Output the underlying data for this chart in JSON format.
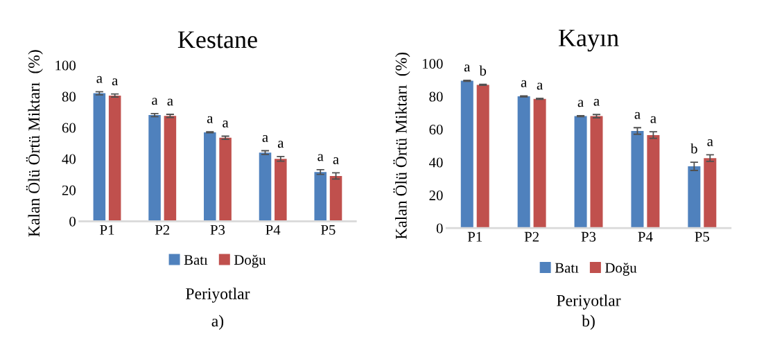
{
  "chart_data": [
    {
      "type": "bar",
      "title": "Kestane",
      "xlabel": "Periyotlar",
      "ylabel": "Kalan Ölü Örtü Miktarı  (%)",
      "categories": [
        "P1",
        "P2",
        "P3",
        "P4",
        "P5"
      ],
      "ylim": [
        0,
        100
      ],
      "yticks": [
        0,
        20,
        40,
        60,
        80,
        100
      ],
      "grid": false,
      "legend": "bottom",
      "annotations": [
        "a)"
      ],
      "series": [
        {
          "name": "Batı",
          "color": "#4f81bd",
          "values": [
            82,
            68,
            57,
            44,
            31.5
          ],
          "errors": [
            1,
            1,
            0.3,
            1.2,
            1.5
          ],
          "value_labels": [
            "a",
            "a",
            "a",
            "a",
            "a"
          ]
        },
        {
          "name": "Doğu",
          "color": "#c0504d",
          "values": [
            80.5,
            67.5,
            53.5,
            40,
            29
          ],
          "errors": [
            1,
            1,
            1,
            1.5,
            2
          ],
          "value_labels": [
            "a",
            "a",
            "a",
            "a",
            "a"
          ]
        }
      ]
    },
    {
      "type": "bar",
      "title": "Kayın",
      "xlabel": "Periyotlar",
      "ylabel": "Kalan Ölü Örtü Miktarı  (%)",
      "categories": [
        "P1",
        "P2",
        "P3",
        "P4",
        "P5"
      ],
      "ylim": [
        0,
        100
      ],
      "yticks": [
        0,
        20,
        40,
        60,
        80,
        100
      ],
      "grid": false,
      "legend": "bottom",
      "annotations": [
        "b)"
      ],
      "series": [
        {
          "name": "Batı",
          "color": "#4f81bd",
          "values": [
            89.5,
            80,
            68,
            59,
            37.5
          ],
          "errors": [
            0.3,
            0.3,
            0.3,
            2,
            2.5
          ],
          "value_labels": [
            "a",
            "a",
            "a",
            "a",
            "b"
          ]
        },
        {
          "name": "Doğu",
          "color": "#c0504d",
          "values": [
            87,
            78.5,
            68,
            56.5,
            42.5
          ],
          "errors": [
            0.3,
            0.3,
            1,
            2,
            2
          ],
          "value_labels": [
            "b",
            "a",
            "a",
            "a",
            "a"
          ]
        }
      ]
    }
  ]
}
